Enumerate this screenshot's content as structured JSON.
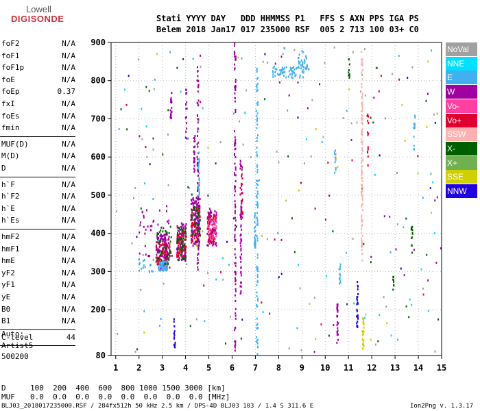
{
  "logo": {
    "line1": "Lowell",
    "line2": "DIGISONDE"
  },
  "header": {
    "row1": "Stati YYYY DAY   DDD HHMMSS P1   FFS S AXN PPS IGA PS",
    "row2": "Belem 2018 Jan17 017 235000 RSF  005 2 713 100 03+ C0"
  },
  "params_groups": [
    [
      {
        "k": "foF2",
        "v": "N/A"
      },
      {
        "k": "foF1",
        "v": "N/A"
      },
      {
        "k": "foF1p",
        "v": "N/A"
      },
      {
        "k": "foE",
        "v": "N/A"
      },
      {
        "k": "foEp",
        "v": "0.37"
      },
      {
        "k": "fxI",
        "v": "N/A"
      },
      {
        "k": "foEs",
        "v": "N/A"
      },
      {
        "k": "fmin",
        "v": "N/A"
      }
    ],
    [
      {
        "k": "MUF(D)",
        "v": "N/A"
      },
      {
        "k": "M(D)",
        "v": "N/A"
      },
      {
        "k": "D",
        "v": "N/A"
      }
    ],
    [
      {
        "k": "h`F",
        "v": "N/A"
      },
      {
        "k": "h`F2",
        "v": "N/A"
      },
      {
        "k": "h`E",
        "v": "N/A"
      },
      {
        "k": "h`Es",
        "v": "N/A"
      }
    ],
    [
      {
        "k": "hmF2",
        "v": "N/A"
      },
      {
        "k": "hmF1",
        "v": "N/A"
      },
      {
        "k": "hmE",
        "v": "N/A"
      },
      {
        "k": "yF2",
        "v": "N/A"
      },
      {
        "k": "yF1",
        "v": "N/A"
      },
      {
        "k": "yE",
        "v": "N/A"
      },
      {
        "k": "B0",
        "v": "N/A"
      },
      {
        "k": "B1",
        "v": "N/A"
      }
    ],
    [
      {
        "k": "C-level",
        "v": "44"
      }
    ]
  ],
  "auto": {
    "line1": "Auto:",
    "line2": "Artist5",
    "line3": "500200"
  },
  "legend": [
    {
      "label": "NoVal",
      "color": "#a0a0a0"
    },
    {
      "label": "NNE",
      "color": "#00e0ff"
    },
    {
      "label": "E",
      "color": "#40b0f0"
    },
    {
      "label": "W",
      "color": "#a000a0"
    },
    {
      "label": "Vo-",
      "color": "#ff40a0"
    },
    {
      "label": "Vo+",
      "color": "#e00030"
    },
    {
      "label": "SSW",
      "color": "#ffb0b0"
    },
    {
      "label": "X-",
      "color": "#006000"
    },
    {
      "label": "X+",
      "color": "#70b050"
    },
    {
      "label": "SSE",
      "color": "#d0d000"
    },
    {
      "label": "NNW",
      "color": "#2000e0"
    }
  ],
  "chart_data": {
    "type": "scatter",
    "xlim": [
      0.8,
      15
    ],
    "ylim": [
      80,
      900
    ],
    "x_ticks": [
      1,
      2,
      3,
      4,
      5,
      6,
      7,
      8,
      9,
      10,
      11,
      12,
      13,
      14,
      15
    ],
    "y_ticks": [
      80,
      200,
      300,
      400,
      500,
      600,
      700,
      800,
      900
    ],
    "y_tick_labels": [
      "80",
      "200",
      "300",
      "400",
      "500",
      "600",
      "700",
      "800",
      "900"
    ],
    "x_tick_labels": [
      "1",
      "2",
      "3",
      "4",
      "5",
      "6",
      "7",
      "8",
      "9",
      "10",
      "11",
      "12",
      "13",
      "14",
      "15"
    ],
    "grid": true,
    "regions": [
      {
        "color": "#a000a0",
        "x": [
          2.7,
          3.3
        ],
        "y": [
          310,
          400
        ],
        "n": 120
      },
      {
        "color": "#e00030",
        "x": [
          2.7,
          3.3
        ],
        "y": [
          320,
          380
        ],
        "n": 70
      },
      {
        "color": "#40b0f0",
        "x": [
          2.8,
          3.2
        ],
        "y": [
          305,
          330
        ],
        "n": 60
      },
      {
        "color": "#006000",
        "x": [
          2.7,
          3.4
        ],
        "y": [
          320,
          420
        ],
        "n": 40
      },
      {
        "color": "#a000a0",
        "x": [
          3.6,
          4.0
        ],
        "y": [
          330,
          430
        ],
        "n": 100
      },
      {
        "color": "#e00030",
        "x": [
          3.6,
          4.0
        ],
        "y": [
          340,
          410
        ],
        "n": 60
      },
      {
        "color": "#006000",
        "x": [
          3.6,
          4.0
        ],
        "y": [
          330,
          420
        ],
        "n": 40
      },
      {
        "color": "#a000a0",
        "x": [
          4.2,
          4.6
        ],
        "y": [
          370,
          500
        ],
        "n": 120
      },
      {
        "color": "#e00030",
        "x": [
          4.2,
          4.6
        ],
        "y": [
          380,
          470
        ],
        "n": 60
      },
      {
        "color": "#006000",
        "x": [
          4.2,
          4.6
        ],
        "y": [
          380,
          480
        ],
        "n": 40
      },
      {
        "color": "#a000a0",
        "x": [
          4.9,
          5.3
        ],
        "y": [
          370,
          470
        ],
        "n": 80
      },
      {
        "color": "#e00030",
        "x": [
          4.9,
          5.3
        ],
        "y": [
          380,
          450
        ],
        "n": 50
      },
      {
        "color": "#ff40a0",
        "x": [
          4.9,
          5.3
        ],
        "y": [
          390,
          440
        ],
        "n": 30
      },
      {
        "color": "#40b0f0",
        "x": [
          7.7,
          9.3
        ],
        "y": [
          810,
          840
        ],
        "n": 70
      },
      {
        "color": "#40b0f0",
        "x": [
          8.8,
          9.2
        ],
        "y": [
          830,
          880
        ],
        "n": 25
      },
      {
        "color": "#a000a0",
        "x": [
          2.0,
          3.4
        ],
        "y": [
          330,
          480
        ],
        "n": 40
      },
      {
        "color": "#40b0f0",
        "x": [
          1.9,
          2.6
        ],
        "y": [
          300,
          340
        ],
        "n": 18
      },
      {
        "color": "#a0a0a0",
        "x": [
          1,
          15
        ],
        "y": [
          90,
          890
        ],
        "n": 70
      },
      {
        "color": "#006000",
        "x": [
          1,
          15
        ],
        "y": [
          90,
          890
        ],
        "n": 40
      },
      {
        "color": "#d0d000",
        "x": [
          1,
          15
        ],
        "y": [
          90,
          890
        ],
        "n": 25
      },
      {
        "color": "#40b0f0",
        "x": [
          1,
          15
        ],
        "y": [
          90,
          890
        ],
        "n": 40
      },
      {
        "color": "#a000a0",
        "x": [
          1,
          15
        ],
        "y": [
          90,
          890
        ],
        "n": 30
      },
      {
        "color": "#00e0ff",
        "x": [
          1,
          15
        ],
        "y": [
          90,
          890
        ],
        "n": 20
      },
      {
        "color": "#e00030",
        "x": [
          1,
          15
        ],
        "y": [
          90,
          890
        ],
        "n": 20
      },
      {
        "color": "#2000e0",
        "x": [
          1,
          15
        ],
        "y": [
          90,
          890
        ],
        "n": 15
      }
    ],
    "streaks": [
      {
        "color": "#a000a0",
        "x": 6.1,
        "y": [
          90,
          900
        ],
        "n": 110
      },
      {
        "color": "#a000a0",
        "x": 6.35,
        "y": [
          240,
          600
        ],
        "n": 60
      },
      {
        "color": "#e00030",
        "x": 6.4,
        "y": [
          430,
          580
        ],
        "n": 20
      },
      {
        "color": "#40b0f0",
        "x": 7.05,
        "y": [
          85,
          850
        ],
        "n": 95
      },
      {
        "color": "#40b0f0",
        "x": 6.95,
        "y": [
          360,
          460
        ],
        "n": 25
      },
      {
        "color": "#ffb0b0",
        "x": 11.55,
        "y": [
          330,
          880
        ],
        "n": 110
      },
      {
        "color": "#d0d000",
        "x": 11.6,
        "y": [
          100,
          180
        ],
        "n": 25
      },
      {
        "color": "#2000e0",
        "x": 11.35,
        "y": [
          150,
          280
        ],
        "n": 25
      },
      {
        "color": "#a000a0",
        "x": 10.5,
        "y": [
          110,
          220
        ],
        "n": 25
      },
      {
        "color": "#a000a0",
        "x": 4.5,
        "y": [
          300,
          840
        ],
        "n": 80
      },
      {
        "color": "#a000a0",
        "x": 4.35,
        "y": [
          560,
          660
        ],
        "n": 25
      },
      {
        "color": "#40b0f0",
        "x": 4.55,
        "y": [
          500,
          620
        ],
        "n": 25
      },
      {
        "color": "#2000e0",
        "x": 3.5,
        "y": [
          100,
          180
        ],
        "n": 15
      },
      {
        "color": "#a000a0",
        "x": 3.35,
        "y": [
          700,
          780
        ],
        "n": 20
      },
      {
        "color": "#a000a0",
        "x": 4.0,
        "y": [
          650,
          780
        ],
        "n": 15
      },
      {
        "color": "#006000",
        "x": 13.7,
        "y": [
          370,
          420
        ],
        "n": 12
      },
      {
        "color": "#40b0f0",
        "x": 13.8,
        "y": [
          620,
          720
        ],
        "n": 15
      },
      {
        "color": "#006000",
        "x": 12.9,
        "y": [
          250,
          300
        ],
        "n": 8
      },
      {
        "color": "#e00030",
        "x": 11.8,
        "y": [
          580,
          720
        ],
        "n": 15
      },
      {
        "color": "#006000",
        "x": 11.0,
        "y": [
          810,
          860
        ],
        "n": 10
      },
      {
        "color": "#40b0f0",
        "x": 10.6,
        "y": [
          270,
          330
        ],
        "n": 12
      },
      {
        "color": "#40b0f0",
        "x": 10.4,
        "y": [
          560,
          620
        ],
        "n": 10
      }
    ]
  },
  "footer": {
    "d_label": "D",
    "d_values": "100  200  400  600  800 1000 1500 3000 [km]",
    "muf_label": "MUF",
    "muf_values": "0.0  0.0  0.0  0.0  0.0  0.0  0.0  0.0 [MHz]",
    "info": "BLJ03_2018017235000.RSF / 284fx512h 50 kHz 2.5 km / DPS-4D BLJ03 103 / 1.4 S 311.6 E",
    "version": "Ion2Png v. 1.3.17"
  }
}
